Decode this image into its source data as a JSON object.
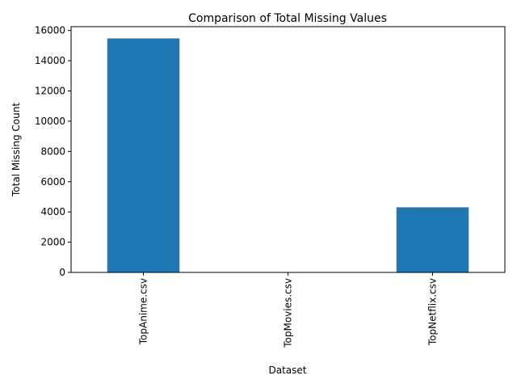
{
  "chart_data": {
    "type": "bar",
    "title": "Comparison of Total Missing Values",
    "xlabel": "Dataset",
    "ylabel": "Total Missing Count",
    "categories": [
      "TopAnime.csv",
      "TopMovies.csv",
      "TopNetflix.csv"
    ],
    "values": [
      15475,
      0,
      4307
    ],
    "ylim": [
      0,
      16250
    ],
    "yticks": [
      0,
      2000,
      4000,
      6000,
      8000,
      10000,
      12000,
      14000,
      16000
    ],
    "ytick_labels": [
      "0",
      "2000",
      "4000",
      "6000",
      "8000",
      "10000",
      "12000",
      "14000",
      "16000"
    ],
    "grid": false,
    "legend": "none",
    "bar_color": "#1f77b4",
    "x_tick_rotation": "vertical"
  }
}
